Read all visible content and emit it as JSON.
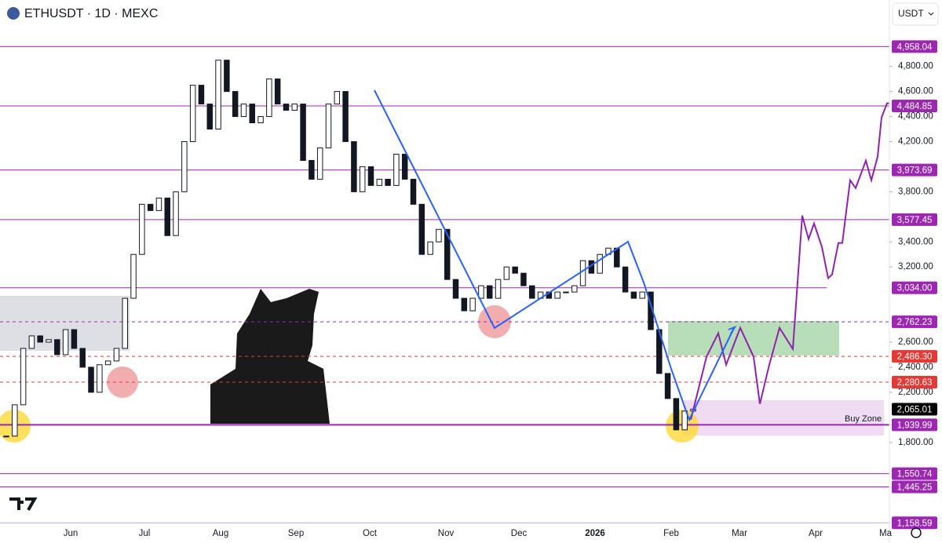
{
  "header": {
    "symbol": "ETHUSDT · 1D · MEXC",
    "currency": "USDT"
  },
  "chart_data": {
    "type": "candlestick",
    "closes": [
      1850,
      2100,
      2550,
      2650,
      2600,
      2620,
      2500,
      2700,
      2550,
      2400,
      2200,
      2420,
      2450,
      2550,
      2950,
      3300,
      3700,
      3650,
      3750,
      3450,
      3800,
      4200,
      4650,
      4500,
      4300,
      4850,
      4600,
      4400,
      4500,
      4350,
      4400,
      4700,
      4500,
      4450,
      4500,
      4050,
      3900,
      4150,
      4500,
      4600,
      4200,
      3800,
      4000,
      3850,
      3900,
      3850,
      4100,
      3900,
      3700,
      3300,
      3400,
      3500,
      3100,
      2950,
      2850,
      2950,
      3050,
      2950,
      3100,
      3200,
      3150,
      3050,
      2950,
      3000,
      2950,
      3000,
      3000,
      3050,
      3250,
      3150,
      3300,
      3350,
      3200,
      3000,
      2950,
      3000,
      2700,
      2350,
      2150,
      1900,
      2050,
      2065
    ],
    "ylim": [
      1160,
      5330
    ],
    "yticks": [
      {
        "value": 4800,
        "label": "4,800.00"
      },
      {
        "value": 4600,
        "label": "4,600.00"
      },
      {
        "value": 4400,
        "label": "4,400.00"
      },
      {
        "value": 4200,
        "label": "4,200.00"
      },
      {
        "value": 3800,
        "label": "3,800.00"
      },
      {
        "value": 3400,
        "label": "3,400.00"
      },
      {
        "value": 3200,
        "label": "3,200.00"
      },
      {
        "value": 2600,
        "label": "2,600.00"
      },
      {
        "value": 2400,
        "label": "2,400.00"
      },
      {
        "value": 2200,
        "label": "2,200.00"
      },
      {
        "value": 1800,
        "label": "1,800.00"
      }
    ],
    "xlabels": [
      "Jun",
      "Jul",
      "Aug",
      "Sep",
      "Oct",
      "Nov",
      "Dec",
      "2026",
      "Feb",
      "Mar",
      "Apr",
      "Ma"
    ],
    "levels": [
      {
        "value": 4958.04,
        "label": "4,958.04",
        "color": "#9c27b0",
        "style": "solid"
      },
      {
        "value": 4484.85,
        "label": "4,484.85",
        "color": "#9c27b0",
        "style": "solid"
      },
      {
        "value": 3973.69,
        "label": "3,973.69",
        "color": "#9c27b0",
        "style": "solid"
      },
      {
        "value": 3577.45,
        "label": "3,577.45",
        "color": "#9c27b0",
        "style": "solid"
      },
      {
        "value": 3034.0,
        "label": "3,034.00",
        "color": "#9c27b0",
        "style": "solid"
      },
      {
        "value": 2762.23,
        "label": "2,762.23",
        "color": "#9c27b0",
        "style": "dashed"
      },
      {
        "value": 2486.3,
        "label": "2,486.30",
        "color": "#e53935",
        "style": "dashed"
      },
      {
        "value": 2280.63,
        "label": "2,280.63",
        "color": "#e53935",
        "style": "dashed"
      },
      {
        "value": 2065.01,
        "label": "2,065.01",
        "color": "#000000",
        "style": "none"
      },
      {
        "value": 1939.99,
        "label": "1,939.99",
        "color": "#9c27b0",
        "style": "thick"
      },
      {
        "value": 1550.74,
        "label": "1,550.74",
        "color": "#9c27b0",
        "style": "solid"
      },
      {
        "value": 1445.25,
        "label": "1,445.25",
        "color": "#9c27b0",
        "style": "solid"
      },
      {
        "value": 1158.59,
        "label": "1,158.59",
        "color": "#9c27b0",
        "style": "solid"
      }
    ],
    "projection": [
      1982,
      2483,
      2671,
      2420,
      2714,
      2483,
      2107,
      2420,
      2714,
      2545,
      3610,
      3422,
      3547,
      3360,
      3110,
      3140,
      3391,
      3391,
      3892,
      3829,
      4048,
      3892,
      4080,
      4393,
      4506,
      4506
    ],
    "projection_color": "#8e24aa",
    "annotation": "Buy Zone"
  }
}
